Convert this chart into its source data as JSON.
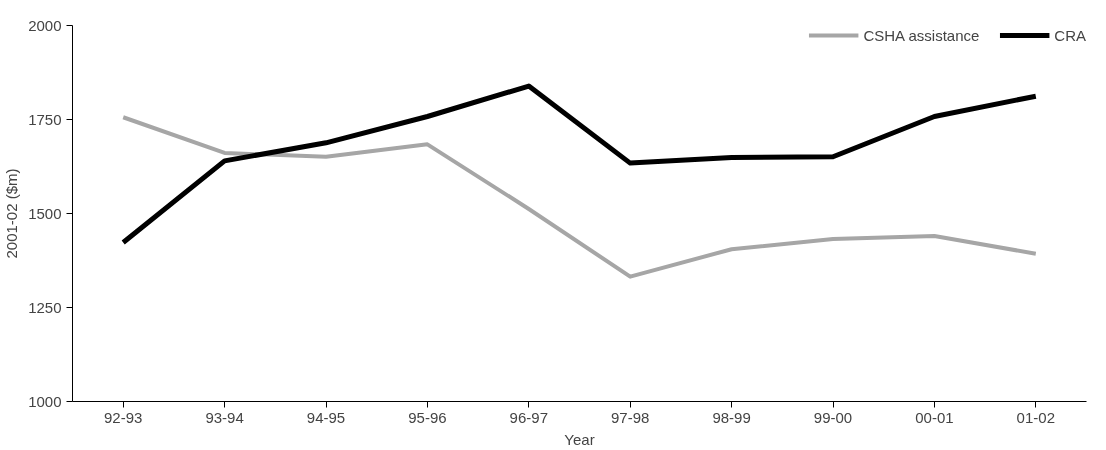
{
  "chart_data": {
    "type": "line",
    "xlabel": "Year",
    "ylabel": "2001-02 ($m)",
    "categories": [
      "92-93",
      "93-94",
      "94-95",
      "95-96",
      "96-97",
      "97-98",
      "98-99",
      "99-00",
      "00-01",
      "01-02"
    ],
    "series": [
      {
        "name": "CSHA assistance",
        "color": "#a6a6a6",
        "values": [
          1756,
          1661,
          1651,
          1684,
          1512,
          1332,
          1405,
          1432,
          1440,
          1393
        ]
      },
      {
        "name": "CRA",
        "color": "#000000",
        "values": [
          1423,
          1640,
          1688,
          1758,
          1839,
          1634,
          1649,
          1651,
          1758,
          1812
        ]
      }
    ],
    "ylim": [
      1000,
      2000
    ],
    "yticks": [
      1000,
      1250,
      1500,
      1750,
      2000
    ],
    "grid": false,
    "legend": "top right",
    "marker": "none",
    "line_style": "solid"
  }
}
